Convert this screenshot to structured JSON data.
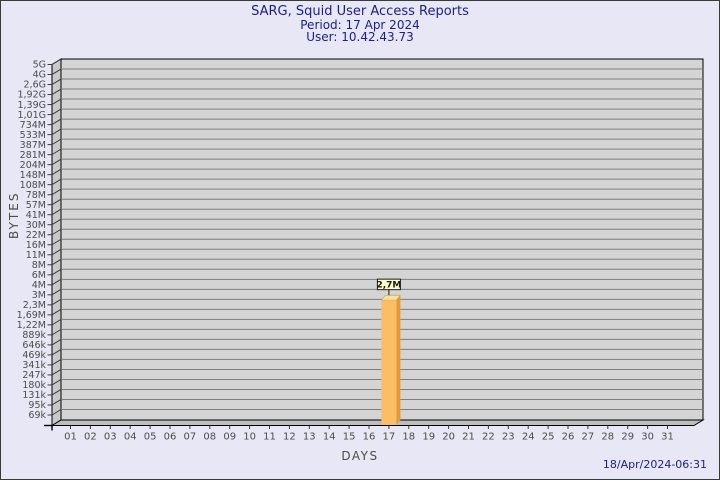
{
  "header": {
    "title": "SARG, Squid User Access Reports",
    "period": "Period: 17 Apr 2024",
    "user": "User: 10.42.43.73"
  },
  "footer": {
    "timestamp": "18/Apr/2024-06:31"
  },
  "chart_data": {
    "type": "bar",
    "title": "SARG, Squid User Access Reports",
    "subtitle": [
      "Period: 17 Apr 2024",
      "User: 10.42.43.73"
    ],
    "xlabel": "DAYS",
    "ylabel": "BYTES",
    "y_scale": "log",
    "y_axis": {
      "top_value_bytes": 5000000000,
      "bottom_value_bytes": 69000,
      "tick_labels": [
        "5G",
        "4G",
        "2,6G",
        "1,92G",
        "1,39G",
        "1,01G",
        "734M",
        "533M",
        "387M",
        "281M",
        "204M",
        "148M",
        "108M",
        "78M",
        "57M",
        "41M",
        "30M",
        "22M",
        "16M",
        "11M",
        "8M",
        "6M",
        "4M",
        "3M",
        "2,3M",
        "1,69M",
        "1,22M",
        "889k",
        "646k",
        "469k",
        "341k",
        "247k",
        "180k",
        "131k",
        "95k",
        "69k"
      ]
    },
    "x_tick_labels": [
      "01",
      "02",
      "03",
      "04",
      "05",
      "06",
      "07",
      "08",
      "09",
      "10",
      "11",
      "12",
      "13",
      "14",
      "15",
      "16",
      "17",
      "18",
      "19",
      "20",
      "21",
      "22",
      "23",
      "24",
      "25",
      "26",
      "27",
      "28",
      "29",
      "30",
      "31"
    ],
    "bars": [
      {
        "day": "17",
        "value_label": "2,7M",
        "value_bytes": 2700000
      }
    ],
    "legend": "none",
    "grid": "horizontal",
    "colors": {
      "background": "#e7e7f5",
      "plot_face": "#d4d4d4",
      "plot_wall": "#c9c9c9",
      "plot_floor": "#bdbdbd",
      "gridline": "#7d7d7d",
      "axis_line": "#000000",
      "tick_text": "#4d4d4d",
      "title_text": "#1d1d8e",
      "bar_front": "#fdbe63",
      "bar_side": "#e09b38",
      "bar_top": "#f2e3a0",
      "value_box_bg": "#ffffc9",
      "value_box_border": "#1a1a1a",
      "value_text": "#1a1a1a"
    }
  }
}
